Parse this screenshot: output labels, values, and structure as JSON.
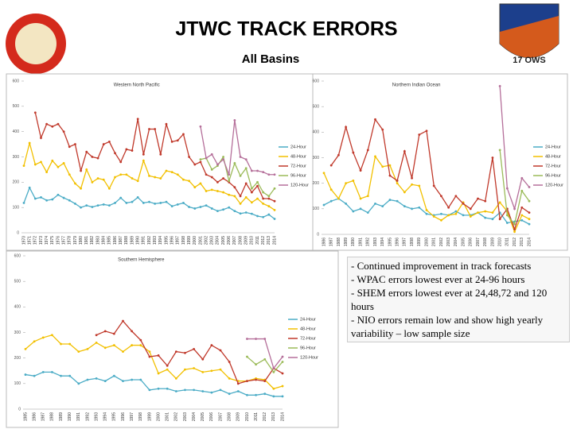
{
  "title": "JTWC TRACK ERRORS",
  "subtitle": "All Basins",
  "logo_text": "17 OWS",
  "notes": [
    "- Continued improvement in track forecasts",
    "- WPAC errors lowest ever at 24-96 hours",
    "- SHEM errors lowest ever at 24,48,72 and 120 hours",
    "- NIO errors remain low and show high yearly variability – low sample size"
  ],
  "chart_data": [
    {
      "type": "line",
      "title": "Western North Pacific",
      "ylim": [
        0,
        600
      ],
      "yticks": [
        0,
        100,
        200,
        300,
        400,
        500,
        600
      ],
      "categories": [
        "1970",
        "1971",
        "1972",
        "1973",
        "1974",
        "1975",
        "1976",
        "1977",
        "1978",
        "1979",
        "1980",
        "1981",
        "1982",
        "1983",
        "1984",
        "1985",
        "1986",
        "1987",
        "1988",
        "1989",
        "1990",
        "1991",
        "1992",
        "1993",
        "1994",
        "1995",
        "1996",
        "1997",
        "1998",
        "1999",
        "2000",
        "2001",
        "2002",
        "2003",
        "2004",
        "2005",
        "2006",
        "2007",
        "2008",
        "2009",
        "2010",
        "2011",
        "2012",
        "2013",
        "2014"
      ],
      "series": [
        {
          "name": "24-Hour",
          "color": "#4bacc6",
          "values": [
            118,
            178,
            135,
            140,
            128,
            132,
            150,
            138,
            128,
            115,
            100,
            108,
            102,
            108,
            112,
            108,
            118,
            138,
            118,
            122,
            140,
            118,
            122,
            115,
            118,
            122,
            105,
            112,
            118,
            102,
            96,
            102,
            108,
            96,
            86,
            92,
            100,
            86,
            76,
            80,
            75,
            66,
            62,
            72,
            55
          ]
        },
        {
          "name": "48-Hour",
          "color": "#f2c000",
          "values": [
            265,
            355,
            270,
            280,
            240,
            285,
            260,
            275,
            230,
            195,
            175,
            250,
            200,
            215,
            210,
            175,
            220,
            230,
            230,
            215,
            205,
            285,
            225,
            220,
            215,
            245,
            240,
            230,
            210,
            205,
            180,
            195,
            165,
            170,
            165,
            160,
            150,
            145,
            115,
            140,
            120,
            135,
            115,
            105,
            90
          ]
        },
        {
          "name": "72-Hour",
          "color": "#c0392b",
          "values": [
            null,
            null,
            475,
            375,
            430,
            420,
            430,
            400,
            340,
            350,
            245,
            320,
            300,
            295,
            350,
            360,
            315,
            280,
            330,
            325,
            450,
            310,
            410,
            410,
            310,
            430,
            360,
            365,
            390,
            300,
            270,
            280,
            230,
            220,
            200,
            215,
            200,
            180,
            145,
            195,
            160,
            185,
            135,
            135,
            125
          ]
        },
        {
          "name": "96-Hour",
          "color": "#9bbb59",
          "values": [
            null,
            null,
            null,
            null,
            null,
            null,
            null,
            null,
            null,
            null,
            null,
            null,
            null,
            null,
            null,
            null,
            null,
            null,
            null,
            null,
            null,
            null,
            null,
            null,
            null,
            null,
            null,
            null,
            null,
            null,
            null,
            290,
            295,
            250,
            265,
            300,
            205,
            275,
            225,
            255,
            175,
            200,
            160,
            145,
            175
          ]
        },
        {
          "name": "120-Hour",
          "color": "#b56f9a",
          "values": [
            null,
            null,
            null,
            null,
            null,
            null,
            null,
            null,
            null,
            null,
            null,
            null,
            null,
            null,
            null,
            null,
            null,
            null,
            null,
            null,
            null,
            null,
            null,
            null,
            null,
            null,
            null,
            null,
            null,
            null,
            null,
            420,
            295,
            310,
            270,
            290,
            230,
            445,
            300,
            290,
            245,
            245,
            240,
            230,
            230
          ]
        }
      ]
    },
    {
      "type": "line",
      "title": "Northern Indian Ocean",
      "ylim": [
        0,
        600
      ],
      "yticks": [
        0,
        100,
        200,
        300,
        400,
        500,
        600
      ],
      "categories": [
        "1986",
        "1987",
        "1988",
        "1989",
        "1990",
        "1991",
        "1992",
        "1993",
        "1994",
        "1995",
        "1996",
        "1997",
        "1998",
        "1999",
        "2000",
        "2001",
        "2002",
        "2003",
        "2004",
        "2005",
        "2006",
        "2007",
        "2008",
        "2009",
        "2010",
        "2011",
        "2012",
        "2013",
        "2014"
      ],
      "series": [
        {
          "name": "24-Hour",
          "color": "#4bacc6",
          "values": [
            115,
            130,
            140,
            120,
            90,
            100,
            85,
            120,
            110,
            135,
            130,
            110,
            100,
            105,
            80,
            75,
            80,
            75,
            90,
            75,
            75,
            85,
            65,
            60,
            85,
            45,
            50,
            55,
            40
          ]
        },
        {
          "name": "48-Hour",
          "color": "#f2c000",
          "values": [
            240,
            175,
            140,
            200,
            210,
            140,
            150,
            305,
            265,
            270,
            200,
            165,
            195,
            190,
            95,
            70,
            55,
            75,
            80,
            125,
            70,
            85,
            90,
            85,
            125,
            90,
            10,
            75,
            60
          ]
        },
        {
          "name": "72-Hour",
          "color": "#c0392b",
          "values": [
            null,
            270,
            310,
            420,
            320,
            250,
            330,
            450,
            410,
            230,
            210,
            325,
            220,
            390,
            405,
            190,
            150,
            105,
            150,
            120,
            100,
            140,
            130,
            300,
            60,
            100,
            20,
            105,
            85
          ]
        },
        {
          "name": "96-Hour",
          "color": "#9bbb59",
          "values": [
            null,
            null,
            null,
            null,
            null,
            null,
            null,
            null,
            null,
            null,
            null,
            null,
            null,
            null,
            null,
            null,
            null,
            null,
            null,
            null,
            null,
            null,
            null,
            null,
            330,
            75,
            40,
            170,
            130
          ]
        },
        {
          "name": "120-Hour",
          "color": "#b56f9a",
          "values": [
            null,
            null,
            null,
            null,
            null,
            null,
            null,
            null,
            null,
            null,
            null,
            null,
            null,
            null,
            null,
            null,
            null,
            null,
            null,
            null,
            null,
            null,
            null,
            null,
            580,
            180,
            100,
            220,
            185
          ]
        }
      ]
    },
    {
      "type": "line",
      "title": "Southern Hemisphere",
      "ylim": [
        0,
        600
      ],
      "yticks": [
        0,
        100,
        200,
        300,
        400,
        500,
        600
      ],
      "categories": [
        "1985",
        "1986",
        "1987",
        "1988",
        "1989",
        "1990",
        "1991",
        "1992",
        "1993",
        "1994",
        "1995",
        "1996",
        "1997",
        "1998",
        "1999",
        "2000",
        "2001",
        "2002",
        "2003",
        "2004",
        "2005",
        "2006",
        "2007",
        "2008",
        "2009",
        "2010",
        "2011",
        "2012",
        "2013",
        "2014"
      ],
      "series": [
        {
          "name": "24-Hour",
          "color": "#4bacc6",
          "values": [
            135,
            130,
            145,
            145,
            130,
            130,
            100,
            115,
            120,
            110,
            130,
            110,
            115,
            115,
            75,
            80,
            80,
            70,
            75,
            75,
            70,
            65,
            75,
            60,
            70,
            55,
            55,
            60,
            50,
            50
          ]
        },
        {
          "name": "48-Hour",
          "color": "#f2c000",
          "values": [
            235,
            265,
            280,
            290,
            255,
            255,
            225,
            235,
            260,
            240,
            250,
            225,
            250,
            250,
            225,
            140,
            155,
            120,
            155,
            160,
            145,
            150,
            155,
            120,
            110,
            110,
            120,
            115,
            80,
            90
          ]
        },
        {
          "name": "72-Hour",
          "color": "#c0392b",
          "values": [
            null,
            null,
            null,
            null,
            null,
            null,
            null,
            null,
            290,
            305,
            295,
            345,
            305,
            270,
            205,
            210,
            170,
            225,
            220,
            235,
            195,
            250,
            230,
            185,
            100,
            110,
            115,
            110,
            160,
            140
          ]
        },
        {
          "name": "96-Hour",
          "color": "#9bbb59",
          "values": [
            null,
            null,
            null,
            null,
            null,
            null,
            null,
            null,
            null,
            null,
            null,
            null,
            null,
            null,
            null,
            null,
            null,
            null,
            null,
            null,
            null,
            null,
            null,
            null,
            null,
            205,
            175,
            195,
            145,
            185
          ]
        },
        {
          "name": "120-Hour",
          "color": "#b56f9a",
          "values": [
            null,
            null,
            null,
            null,
            null,
            null,
            null,
            null,
            null,
            null,
            null,
            null,
            null,
            null,
            null,
            null,
            null,
            null,
            null,
            null,
            null,
            null,
            null,
            null,
            null,
            275,
            275,
            275,
            160,
            205
          ]
        }
      ]
    }
  ]
}
